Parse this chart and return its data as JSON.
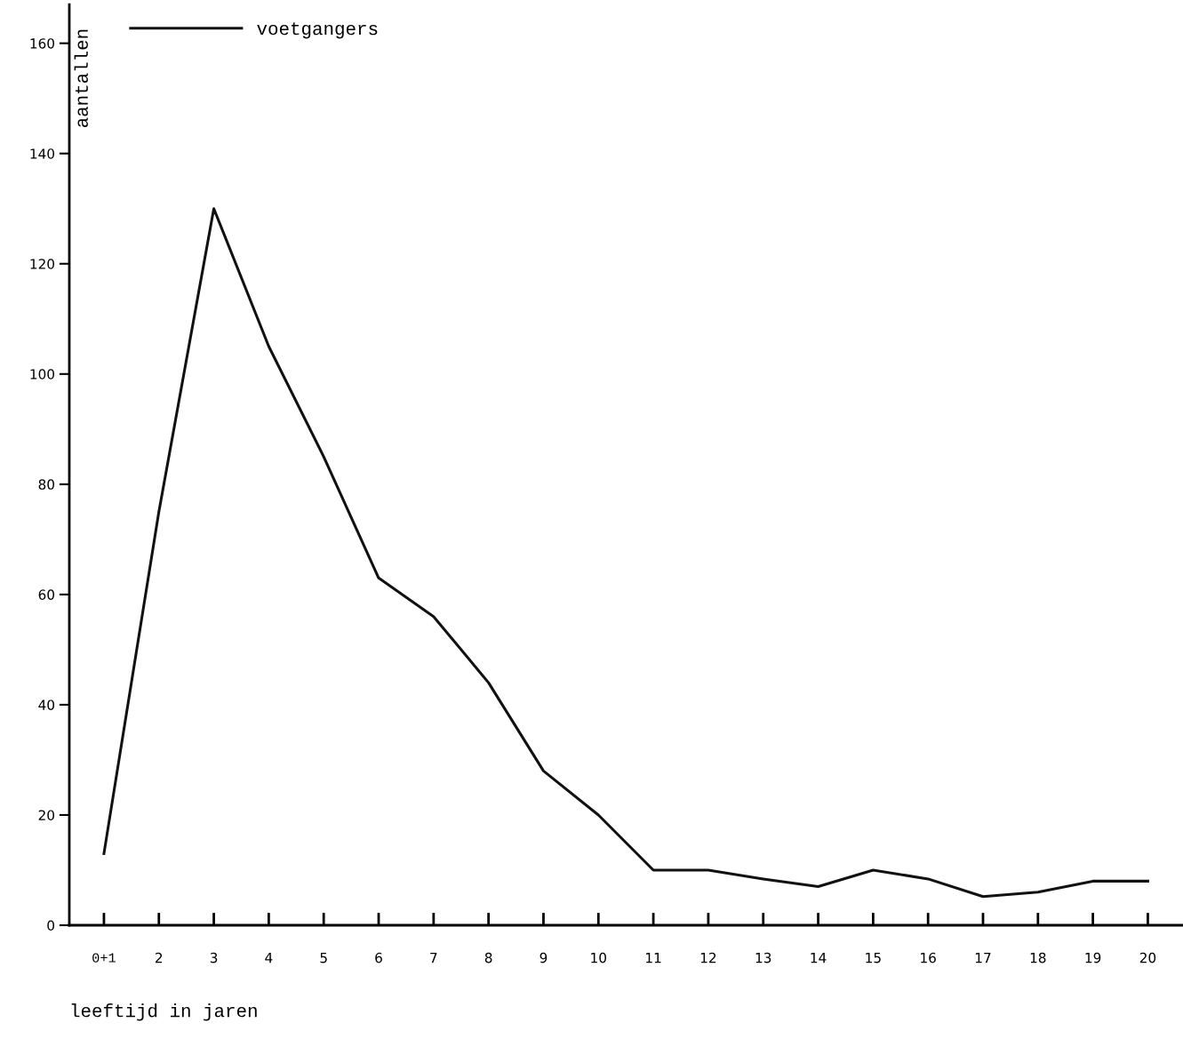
{
  "chart_data": {
    "type": "line",
    "ylabel": "aantallen",
    "xlabel": "leeftijd in jaren",
    "categories": [
      "0+1",
      "2",
      "3",
      "4",
      "5",
      "6",
      "7",
      "8",
      "9",
      "10",
      "11",
      "12",
      "13",
      "14",
      "15",
      "16",
      "17",
      "18",
      "19",
      "20"
    ],
    "series": [
      {
        "name": "voetgangers",
        "color": "#111111",
        "values": [
          13,
          75,
          130,
          105,
          85,
          63,
          56,
          44,
          28,
          20,
          10,
          10,
          8.4,
          7,
          10,
          8.4,
          5.2,
          6,
          8,
          8
        ]
      }
    ],
    "ylim": [
      0,
      167
    ],
    "yticks": [
      0,
      20,
      40,
      60,
      80,
      100,
      120,
      140,
      160
    ],
    "grid": false,
    "legend": "top left",
    "marker": "none",
    "line_style": "solid"
  }
}
